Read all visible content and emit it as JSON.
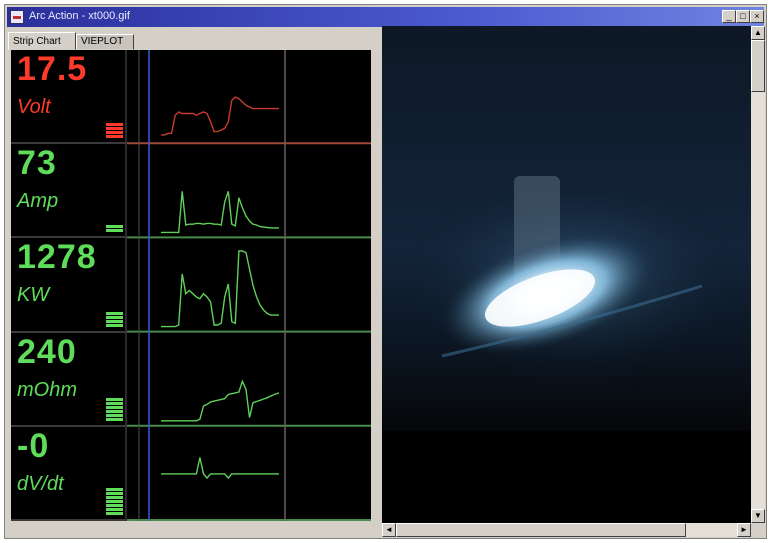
{
  "window": {
    "title": "Arc Action - xt000.gif",
    "controls": {
      "minimize": "_",
      "maximize": "□",
      "close": "×"
    }
  },
  "tabs": [
    {
      "label": "Strip Chart",
      "active": true
    },
    {
      "label": "VIEPLOT",
      "active": false
    }
  ],
  "readouts": [
    {
      "value": "17.5",
      "unit": "Volt",
      "color": "#ff3a2a",
      "level_fraction": 0.5
    },
    {
      "value": "73",
      "unit": "Amp",
      "color": "#5fdc5a",
      "level_fraction": 0.2
    },
    {
      "value": "1278",
      "unit": "KW",
      "color": "#5fdc5a",
      "level_fraction": 0.55
    },
    {
      "value": "240",
      "unit": "mOhm",
      "color": "#5fdc5a",
      "level_fraction": 0.7
    },
    {
      "value": "-0",
      "unit": "dV/dt",
      "color": "#5fdc5a",
      "level_fraction": 0.9
    }
  ],
  "chart_data": {
    "type": "line",
    "x": [
      0,
      0.03,
      0.06,
      0.09,
      0.12,
      0.15,
      0.18,
      0.21,
      0.24,
      0.27,
      0.3,
      0.33,
      0.36,
      0.39,
      0.42,
      0.45,
      0.48,
      0.51,
      0.54,
      0.57,
      0.6,
      0.63,
      0.66,
      0.69,
      0.72,
      0.75,
      0.78,
      0.81,
      0.84,
      0.87,
      0.9,
      0.93,
      0.96,
      1.0
    ],
    "series": [
      {
        "name": "Volt",
        "color": "#c83a2e",
        "ylim": [
          0,
          50
        ],
        "values": [
          2,
          2,
          3,
          3,
          14,
          16,
          15,
          15,
          15,
          15,
          14,
          15,
          16,
          15,
          10,
          4,
          4,
          5,
          6,
          10,
          23,
          25,
          24,
          22,
          20,
          19,
          18,
          18,
          18,
          18,
          18,
          18,
          18,
          18
        ]
      },
      {
        "name": "Amp",
        "color": "#5fd05a",
        "ylim": [
          0,
          1000
        ],
        "values": [
          0,
          0,
          0,
          0,
          0,
          0,
          500,
          90,
          100,
          100,
          110,
          110,
          100,
          110,
          110,
          100,
          100,
          90,
          370,
          500,
          100,
          80,
          420,
          300,
          200,
          140,
          100,
          90,
          70,
          65,
          60,
          55,
          55,
          55
        ]
      },
      {
        "name": "KW",
        "color": "#5fd05a",
        "ylim": [
          0,
          5000
        ],
        "values": [
          0,
          0,
          0,
          0,
          0,
          100,
          3200,
          2000,
          2200,
          2000,
          1800,
          1700,
          2000,
          1800,
          1500,
          100,
          100,
          200,
          1800,
          2600,
          300,
          200,
          4600,
          4600,
          4500,
          3500,
          2500,
          1800,
          1300,
          1000,
          800,
          700,
          700,
          700
        ]
      },
      {
        "name": "mOhm",
        "color": "#5fd05a",
        "ylim": [
          0,
          1000
        ],
        "values": [
          0,
          0,
          0,
          0,
          0,
          0,
          0,
          0,
          0,
          0,
          0,
          20,
          180,
          200,
          230,
          240,
          250,
          260,
          270,
          320,
          330,
          340,
          350,
          480,
          380,
          40,
          220,
          235,
          250,
          265,
          280,
          300,
          320,
          340
        ]
      },
      {
        "name": "dV/dt",
        "color": "#5fd05a",
        "ylim": [
          -10,
          10
        ],
        "values": [
          0,
          0,
          0,
          0,
          0,
          0,
          0,
          0,
          0,
          0,
          0,
          4,
          0,
          -1,
          0,
          0,
          0,
          0,
          0,
          -1,
          0,
          0,
          0,
          0,
          0,
          0,
          0,
          0,
          0,
          0,
          0,
          0,
          0,
          0
        ]
      }
    ]
  }
}
